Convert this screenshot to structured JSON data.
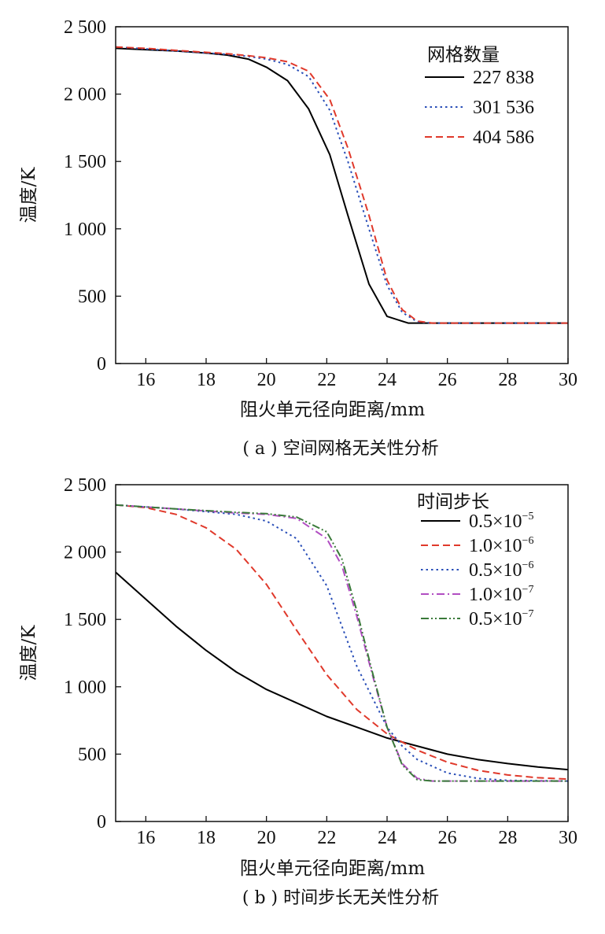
{
  "chart_data": [
    {
      "type": "line",
      "caption": "( a ) 空间网格无关性分析",
      "xlabel": "阻火单元径向距离/mm",
      "ylabel": "温度/K",
      "xlim": [
        15,
        30
      ],
      "ylim": [
        0,
        2500
      ],
      "xticks": [
        16,
        18,
        20,
        22,
        24,
        26,
        28,
        30
      ],
      "yticks": [
        0,
        500,
        1000,
        1500,
        2000,
        2500
      ],
      "xtick_labels": [
        "16",
        "18",
        "20",
        "22",
        "24",
        "26",
        "28",
        "30"
      ],
      "ytick_labels": [
        "0",
        "500",
        "1 000",
        "1 500",
        "2 000",
        "2 500"
      ],
      "grid": false,
      "legend_title": "网格数量",
      "legend_position": "top-right",
      "series": [
        {
          "name": "227 838",
          "style": "solid",
          "color": "#000000",
          "points": [
            [
              15,
              2340
            ],
            [
              16,
              2330
            ],
            [
              17,
              2320
            ],
            [
              18,
              2305
            ],
            [
              18.7,
              2290
            ],
            [
              19.4,
              2260
            ],
            [
              20,
              2200
            ],
            [
              20.7,
              2100
            ],
            [
              21.4,
              1890
            ],
            [
              22.1,
              1550
            ],
            [
              22.7,
              1100
            ],
            [
              23.4,
              590
            ],
            [
              24,
              350
            ],
            [
              24.7,
              300
            ],
            [
              25,
              300
            ],
            [
              30,
              300
            ]
          ]
        },
        {
          "name": "301 536",
          "style": "dotted",
          "color": "#2a4fb8",
          "points": [
            [
              15,
              2350
            ],
            [
              16,
              2335
            ],
            [
              17,
              2320
            ],
            [
              18,
              2305
            ],
            [
              18.7,
              2295
            ],
            [
              19.4,
              2280
            ],
            [
              20,
              2260
            ],
            [
              20.7,
              2220
            ],
            [
              21.4,
              2130
            ],
            [
              22.1,
              1880
            ],
            [
              22.7,
              1500
            ],
            [
              23.4,
              1000
            ],
            [
              24,
              580
            ],
            [
              24.5,
              380
            ],
            [
              25,
              310
            ],
            [
              25.5,
              300
            ],
            [
              30,
              300
            ]
          ]
        },
        {
          "name": "404 586",
          "style": "dashed",
          "color": "#e0392b",
          "points": [
            [
              15,
              2350
            ],
            [
              16,
              2340
            ],
            [
              17,
              2325
            ],
            [
              18,
              2310
            ],
            [
              18.7,
              2300
            ],
            [
              19.4,
              2285
            ],
            [
              20,
              2270
            ],
            [
              20.7,
              2240
            ],
            [
              21.4,
              2170
            ],
            [
              22.1,
              1960
            ],
            [
              22.7,
              1600
            ],
            [
              23.4,
              1100
            ],
            [
              24,
              620
            ],
            [
              24.5,
              400
            ],
            [
              25,
              315
            ],
            [
              25.5,
              300
            ],
            [
              30,
              300
            ]
          ]
        }
      ]
    },
    {
      "type": "line",
      "caption": "( b ) 时间步长无关性分析",
      "xlabel": "阻火单元径向距离/mm",
      "ylabel": "温度/K",
      "xlim": [
        15,
        30
      ],
      "ylim": [
        0,
        2500
      ],
      "xticks": [
        16,
        18,
        20,
        22,
        24,
        26,
        28,
        30
      ],
      "yticks": [
        0,
        500,
        1000,
        1500,
        2000,
        2500
      ],
      "xtick_labels": [
        "16",
        "18",
        "20",
        "22",
        "24",
        "26",
        "28",
        "30"
      ],
      "ytick_labels": [
        "0",
        "500",
        "1 000",
        "1 500",
        "2 000",
        "2 500"
      ],
      "grid": false,
      "legend_title": "时间步长",
      "legend_position": "top-right",
      "series": [
        {
          "name": "0.5×10",
          "exponent": "−5",
          "style": "solid",
          "color": "#000000",
          "points": [
            [
              15,
              1850
            ],
            [
              16,
              1650
            ],
            [
              17,
              1450
            ],
            [
              18,
              1270
            ],
            [
              19,
              1110
            ],
            [
              20,
              980
            ],
            [
              21,
              880
            ],
            [
              22,
              780
            ],
            [
              23,
              700
            ],
            [
              24,
              620
            ],
            [
              25,
              560
            ],
            [
              26,
              500
            ],
            [
              27,
              460
            ],
            [
              28,
              430
            ],
            [
              29,
              405
            ],
            [
              30,
              385
            ]
          ]
        },
        {
          "name": "1.0×10",
          "exponent": "−6",
          "style": "dashed",
          "color": "#e0392b",
          "points": [
            [
              15,
              2350
            ],
            [
              16,
              2330
            ],
            [
              17,
              2280
            ],
            [
              18,
              2180
            ],
            [
              19,
              2020
            ],
            [
              20,
              1760
            ],
            [
              21,
              1420
            ],
            [
              22,
              1090
            ],
            [
              23,
              830
            ],
            [
              24,
              650
            ],
            [
              25,
              530
            ],
            [
              26,
              440
            ],
            [
              27,
              380
            ],
            [
              28,
              345
            ],
            [
              29,
              325
            ],
            [
              30,
              315
            ]
          ]
        },
        {
          "name": "0.5×10",
          "exponent": "−6",
          "style": "dotted",
          "color": "#2a4fb8",
          "points": [
            [
              15,
              2350
            ],
            [
              17,
              2320
            ],
            [
              19,
              2280
            ],
            [
              20,
              2230
            ],
            [
              21,
              2100
            ],
            [
              22,
              1750
            ],
            [
              23,
              1150
            ],
            [
              24,
              700
            ],
            [
              24.5,
              560
            ],
            [
              25,
              460
            ],
            [
              26,
              360
            ],
            [
              27,
              320
            ],
            [
              28,
              305
            ],
            [
              30,
              300
            ]
          ]
        },
        {
          "name": "1.0×10",
          "exponent": "−7",
          "style": "dashdot",
          "color": "#b14ec2",
          "points": [
            [
              15,
              2350
            ],
            [
              17,
              2320
            ],
            [
              19,
              2290
            ],
            [
              20,
              2280
            ],
            [
              21,
              2250
            ],
            [
              22,
              2100
            ],
            [
              22.5,
              1900
            ],
            [
              23,
              1520
            ],
            [
              23.5,
              1100
            ],
            [
              24,
              700
            ],
            [
              24.5,
              430
            ],
            [
              25,
              320
            ],
            [
              25.5,
              300
            ],
            [
              30,
              300
            ]
          ]
        },
        {
          "name": "0.5×10",
          "exponent": "−7",
          "style": "dashdotdot",
          "color": "#3a7a3a",
          "points": [
            [
              15,
              2350
            ],
            [
              17,
              2320
            ],
            [
              19,
              2295
            ],
            [
              20,
              2285
            ],
            [
              21,
              2260
            ],
            [
              22,
              2150
            ],
            [
              22.5,
              1950
            ],
            [
              23,
              1560
            ],
            [
              23.5,
              1120
            ],
            [
              24,
              700
            ],
            [
              24.5,
              420
            ],
            [
              25,
              310
            ],
            [
              25.5,
              300
            ],
            [
              30,
              300
            ]
          ]
        }
      ]
    }
  ]
}
